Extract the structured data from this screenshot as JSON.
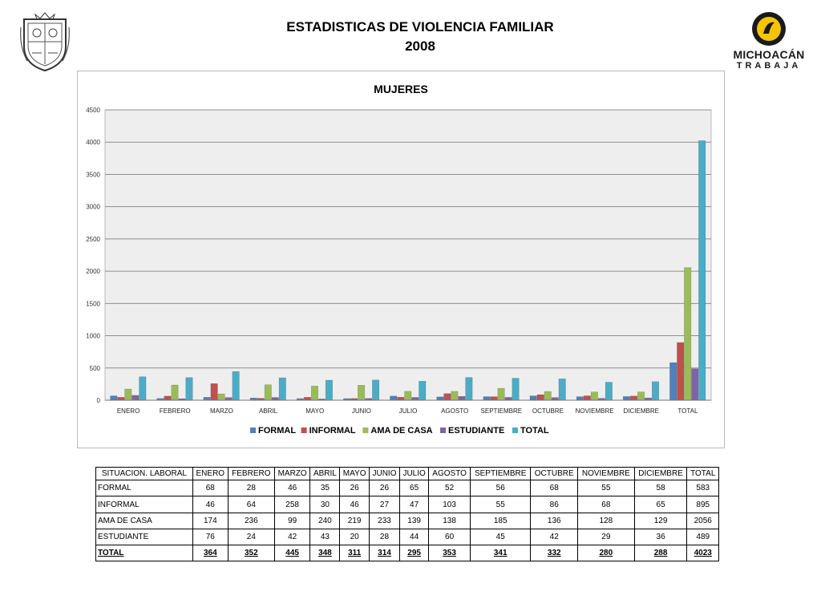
{
  "header": {
    "title_line1": "ESTADISTICAS DE VIOLENCIA FAMILIAR",
    "title_line2": "2008"
  },
  "logo": {
    "line1": "MICHOACÁN",
    "line2": "TRABAJA",
    "accent": "#f5c400"
  },
  "chart_data": {
    "type": "bar",
    "title": "MUJERES",
    "categories": [
      "ENERO",
      "FEBRERO",
      "MARZO",
      "ABRIL",
      "MAYO",
      "JUNIO",
      "JULIO",
      "AGOSTO",
      "SEPTIEMBRE",
      "OCTUBRE",
      "NOVIEMBRE",
      "DICIEMBRE",
      "TOTAL"
    ],
    "series": [
      {
        "name": "FORMAL",
        "color": "#4f81bd",
        "values": [
          68,
          28,
          46,
          35,
          26,
          26,
          65,
          52,
          56,
          68,
          55,
          58,
          583
        ]
      },
      {
        "name": "INFORMAL",
        "color": "#c0504d",
        "values": [
          46,
          64,
          258,
          30,
          46,
          27,
          47,
          103,
          55,
          86,
          68,
          65,
          895
        ]
      },
      {
        "name": "AMA DE CASA",
        "color": "#9bbb59",
        "values": [
          174,
          236,
          99,
          240,
          219,
          233,
          139,
          138,
          185,
          136,
          128,
          129,
          2056
        ]
      },
      {
        "name": "ESTUDIANTE",
        "color": "#8064a2",
        "values": [
          76,
          24,
          42,
          43,
          20,
          28,
          44,
          60,
          45,
          42,
          29,
          36,
          489
        ]
      },
      {
        "name": "TOTAL",
        "color": "#4bacc6",
        "values": [
          364,
          352,
          445,
          348,
          311,
          314,
          295,
          353,
          341,
          332,
          280,
          288,
          4023
        ]
      }
    ],
    "ylim": [
      0,
      4500
    ],
    "yticks": [
      0,
      500,
      1000,
      1500,
      2000,
      2500,
      3000,
      3500,
      4000,
      4500
    ],
    "grid": true,
    "legend": "bottom"
  },
  "table": {
    "header_label": "SITUACION. LABORAL",
    "columns": [
      "ENERO",
      "FEBRERO",
      "MARZO",
      "ABRIL",
      "MAYO",
      "JUNIO",
      "JULIO",
      "AGOSTO",
      "SEPTIEMBRE",
      "OCTUBRE",
      "NOVIEMBRE",
      "DICIEMBRE",
      "TOTAL"
    ],
    "rows": [
      {
        "label": "FORMAL",
        "values": [
          "68",
          "28",
          "46",
          "35",
          "26",
          "26",
          "65",
          "52",
          "56",
          "68",
          "55",
          "58",
          "583"
        ]
      },
      {
        "label": "INFORMAL",
        "values": [
          "46",
          "64",
          "258",
          "30",
          "46",
          "27",
          "47",
          "103",
          "55",
          "86",
          "68",
          "65",
          "895"
        ]
      },
      {
        "label": "AMA DE CASA",
        "values": [
          "174",
          "236",
          "99",
          "240",
          "219",
          "233",
          "139",
          "138",
          "185",
          "136",
          "128",
          "129",
          "2056"
        ]
      },
      {
        "label": "ESTUDIANTE",
        "values": [
          "76",
          "24",
          "42",
          "43",
          "20",
          "28",
          "44",
          "60",
          "45",
          "42",
          "29",
          "36",
          "489"
        ]
      },
      {
        "label": "TOTAL",
        "values": [
          "364",
          "352",
          "445",
          "348",
          "311",
          "314",
          "295",
          "353",
          "341",
          "332",
          "280",
          "288",
          "4023"
        ]
      }
    ]
  }
}
